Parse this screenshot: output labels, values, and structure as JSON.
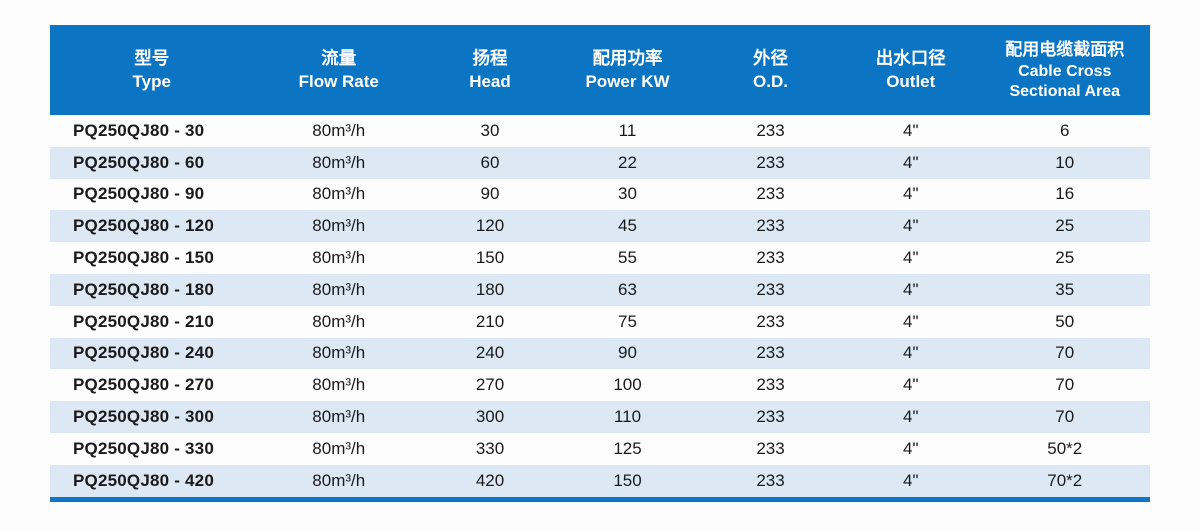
{
  "table": {
    "columns": [
      {
        "zh": "型号",
        "en": "Type"
      },
      {
        "zh": "流量",
        "en": "Flow Rate"
      },
      {
        "zh": "扬程",
        "en": "Head"
      },
      {
        "zh": "配用功率",
        "en": "Power KW"
      },
      {
        "zh": "外径",
        "en": "O.D."
      },
      {
        "zh": "出水口径",
        "en": "Outlet"
      },
      {
        "zh": "配用电缆截面积",
        "en": "Cable Cross\nSectional Area"
      }
    ],
    "rows": [
      [
        "PQ250QJ80 - 30",
        "80m³/h",
        "30",
        "11",
        "233",
        "4\"",
        "6"
      ],
      [
        "PQ250QJ80 - 60",
        "80m³/h",
        "60",
        "22",
        "233",
        "4\"",
        "10"
      ],
      [
        "PQ250QJ80 - 90",
        "80m³/h",
        "90",
        "30",
        "233",
        "4\"",
        "16"
      ],
      [
        "PQ250QJ80 - 120",
        "80m³/h",
        "120",
        "45",
        "233",
        "4\"",
        "25"
      ],
      [
        "PQ250QJ80 - 150",
        "80m³/h",
        "150",
        "55",
        "233",
        "4\"",
        "25"
      ],
      [
        "PQ250QJ80 - 180",
        "80m³/h",
        "180",
        "63",
        "233",
        "4\"",
        "35"
      ],
      [
        "PQ250QJ80 - 210",
        "80m³/h",
        "210",
        "75",
        "233",
        "4\"",
        "50"
      ],
      [
        "PQ250QJ80 - 240",
        "80m³/h",
        "240",
        "90",
        "233",
        "4\"",
        "70"
      ],
      [
        "PQ250QJ80 - 270",
        "80m³/h",
        "270",
        "100",
        "233",
        "4\"",
        "70"
      ],
      [
        "PQ250QJ80 - 300",
        "80m³/h",
        "300",
        "110",
        "233",
        "4\"",
        "70"
      ],
      [
        "PQ250QJ80 - 330",
        "80m³/h",
        "330",
        "125",
        "233",
        "4\"",
        "50*2"
      ],
      [
        "PQ250QJ80 - 420",
        "80m³/h",
        "420",
        "150",
        "233",
        "4\"",
        "70*2"
      ]
    ],
    "colors": {
      "header_bg": "#0b75c4",
      "stripe_bg": "#dce9f5",
      "bottom_bar": "#0e76c6",
      "header_text": "#ffffff",
      "body_text": "#1a1a1a",
      "page_bg": "#fdfdfd"
    }
  }
}
